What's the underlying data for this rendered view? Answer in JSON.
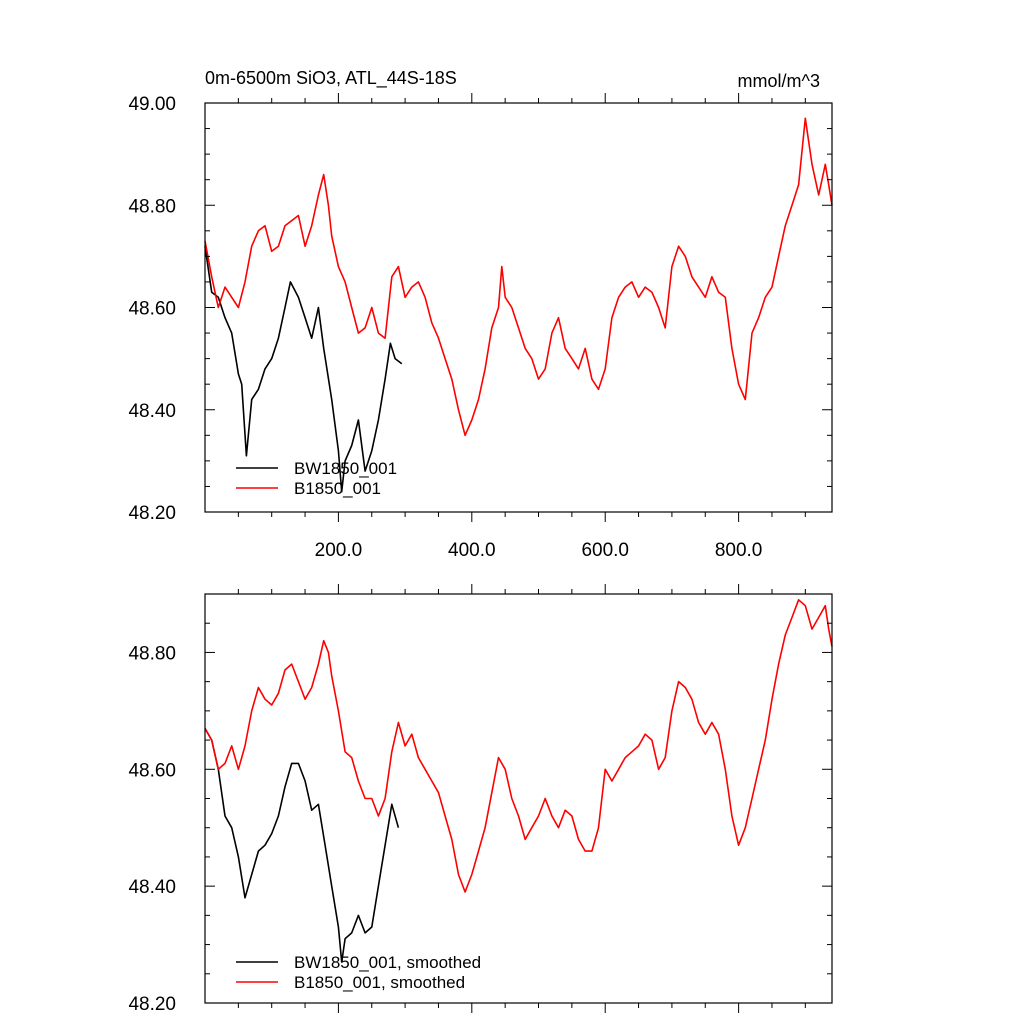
{
  "colors": {
    "series_a": "#000000",
    "series_b": "#ff0000",
    "axis": "#000000",
    "background": "#ffffff"
  },
  "chart_data": [
    {
      "type": "line",
      "title": "0m-6500m SiO3, ATL_44S-18S",
      "units": "mmol/m^3",
      "xlim": [
        0,
        940
      ],
      "ylim": [
        48.2,
        49.0
      ],
      "xticks": [
        200,
        400,
        600,
        800
      ],
      "xtick_labels": [
        "200.0",
        "400.0",
        "600.0",
        "800.0"
      ],
      "yticks": [
        48.2,
        48.4,
        48.6,
        48.8,
        49.0
      ],
      "ytick_labels": [
        "48.20",
        "48.40",
        "48.60",
        "48.80",
        "49.00"
      ],
      "legend_position": "bottom-left",
      "grid": false,
      "series": [
        {
          "name": "BW1850_001",
          "color": "#000000",
          "points": [
            [
              0,
              48.72
            ],
            [
              10,
              48.63
            ],
            [
              20,
              48.62
            ],
            [
              30,
              48.58
            ],
            [
              40,
              48.55
            ],
            [
              50,
              48.47
            ],
            [
              55,
              48.45
            ],
            [
              62,
              48.31
            ],
            [
              70,
              48.42
            ],
            [
              80,
              48.44
            ],
            [
              90,
              48.48
            ],
            [
              100,
              48.5
            ],
            [
              110,
              48.54
            ],
            [
              120,
              48.6
            ],
            [
              128,
              48.65
            ],
            [
              140,
              48.62
            ],
            [
              150,
              48.58
            ],
            [
              160,
              48.54
            ],
            [
              170,
              48.6
            ],
            [
              178,
              48.52
            ],
            [
              190,
              48.42
            ],
            [
              200,
              48.32
            ],
            [
              205,
              48.24
            ],
            [
              210,
              48.3
            ],
            [
              220,
              48.33
            ],
            [
              230,
              48.38
            ],
            [
              240,
              48.28
            ],
            [
              250,
              48.32
            ],
            [
              260,
              48.38
            ],
            [
              270,
              48.46
            ],
            [
              278,
              48.53
            ],
            [
              285,
              48.5
            ],
            [
              295,
              48.49
            ]
          ]
        },
        {
          "name": "B1850_001",
          "color": "#ff0000",
          "points": [
            [
              0,
              48.73
            ],
            [
              10,
              48.66
            ],
            [
              20,
              48.6
            ],
            [
              30,
              48.64
            ],
            [
              40,
              48.62
            ],
            [
              50,
              48.6
            ],
            [
              60,
              48.65
            ],
            [
              70,
              48.72
            ],
            [
              80,
              48.75
            ],
            [
              90,
              48.76
            ],
            [
              100,
              48.71
            ],
            [
              110,
              48.72
            ],
            [
              120,
              48.76
            ],
            [
              130,
              48.77
            ],
            [
              140,
              48.78
            ],
            [
              150,
              48.72
            ],
            [
              160,
              48.76
            ],
            [
              170,
              48.82
            ],
            [
              178,
              48.86
            ],
            [
              185,
              48.8
            ],
            [
              190,
              48.74
            ],
            [
              200,
              48.68
            ],
            [
              210,
              48.65
            ],
            [
              220,
              48.6
            ],
            [
              230,
              48.55
            ],
            [
              240,
              48.56
            ],
            [
              250,
              48.6
            ],
            [
              260,
              48.55
            ],
            [
              270,
              48.54
            ],
            [
              280,
              48.66
            ],
            [
              290,
              48.68
            ],
            [
              300,
              48.62
            ],
            [
              310,
              48.64
            ],
            [
              320,
              48.65
            ],
            [
              330,
              48.62
            ],
            [
              340,
              48.57
            ],
            [
              350,
              48.54
            ],
            [
              360,
              48.5
            ],
            [
              370,
              48.46
            ],
            [
              380,
              48.4
            ],
            [
              390,
              48.35
            ],
            [
              400,
              48.38
            ],
            [
              410,
              48.42
            ],
            [
              420,
              48.48
            ],
            [
              430,
              48.56
            ],
            [
              440,
              48.6
            ],
            [
              445,
              48.68
            ],
            [
              450,
              48.62
            ],
            [
              460,
              48.6
            ],
            [
              470,
              48.56
            ],
            [
              480,
              48.52
            ],
            [
              490,
              48.5
            ],
            [
              500,
              48.46
            ],
            [
              510,
              48.48
            ],
            [
              520,
              48.55
            ],
            [
              530,
              48.58
            ],
            [
              540,
              48.52
            ],
            [
              550,
              48.5
            ],
            [
              560,
              48.48
            ],
            [
              570,
              48.52
            ],
            [
              580,
              48.46
            ],
            [
              590,
              48.44
            ],
            [
              600,
              48.48
            ],
            [
              610,
              48.58
            ],
            [
              620,
              48.62
            ],
            [
              630,
              48.64
            ],
            [
              640,
              48.65
            ],
            [
              650,
              48.62
            ],
            [
              660,
              48.64
            ],
            [
              670,
              48.63
            ],
            [
              680,
              48.6
            ],
            [
              690,
              48.56
            ],
            [
              700,
              48.68
            ],
            [
              710,
              48.72
            ],
            [
              720,
              48.7
            ],
            [
              730,
              48.66
            ],
            [
              740,
              48.64
            ],
            [
              750,
              48.62
            ],
            [
              760,
              48.66
            ],
            [
              770,
              48.63
            ],
            [
              780,
              48.62
            ],
            [
              790,
              48.52
            ],
            [
              800,
              48.45
            ],
            [
              810,
              48.42
            ],
            [
              820,
              48.55
            ],
            [
              830,
              48.58
            ],
            [
              840,
              48.62
            ],
            [
              850,
              48.64
            ],
            [
              860,
              48.7
            ],
            [
              870,
              48.76
            ],
            [
              880,
              48.8
            ],
            [
              890,
              48.84
            ],
            [
              900,
              48.97
            ],
            [
              910,
              48.88
            ],
            [
              920,
              48.82
            ],
            [
              930,
              48.88
            ],
            [
              935,
              48.84
            ],
            [
              940,
              48.8
            ]
          ]
        }
      ]
    },
    {
      "type": "line",
      "title": "",
      "units": "",
      "xlim": [
        0,
        940
      ],
      "ylim": [
        48.2,
        48.9
      ],
      "xticks": [
        200,
        400,
        600,
        800
      ],
      "xtick_labels": [],
      "yticks": [
        48.2,
        48.4,
        48.6,
        48.8
      ],
      "ytick_labels": [
        "48.20",
        "48.40",
        "48.60",
        "48.80"
      ],
      "legend_position": "bottom-left",
      "grid": false,
      "series": [
        {
          "name": "BW1850_001, smoothed",
          "color": "#000000",
          "points": [
            [
              0,
              48.67
            ],
            [
              10,
              48.65
            ],
            [
              20,
              48.6
            ],
            [
              30,
              48.52
            ],
            [
              40,
              48.5
            ],
            [
              50,
              48.45
            ],
            [
              60,
              48.38
            ],
            [
              70,
              48.42
            ],
            [
              80,
              48.46
            ],
            [
              90,
              48.47
            ],
            [
              100,
              48.49
            ],
            [
              110,
              48.52
            ],
            [
              120,
              48.57
            ],
            [
              130,
              48.61
            ],
            [
              140,
              48.61
            ],
            [
              150,
              48.58
            ],
            [
              160,
              48.53
            ],
            [
              170,
              48.54
            ],
            [
              180,
              48.47
            ],
            [
              190,
              48.4
            ],
            [
              200,
              48.33
            ],
            [
              205,
              48.27
            ],
            [
              210,
              48.31
            ],
            [
              220,
              48.32
            ],
            [
              230,
              48.35
            ],
            [
              240,
              48.32
            ],
            [
              250,
              48.33
            ],
            [
              260,
              48.4
            ],
            [
              270,
              48.47
            ],
            [
              280,
              48.54
            ],
            [
              290,
              48.5
            ]
          ]
        },
        {
          "name": "B1850_001, smoothed",
          "color": "#ff0000",
          "points": [
            [
              0,
              48.67
            ],
            [
              10,
              48.65
            ],
            [
              20,
              48.6
            ],
            [
              30,
              48.61
            ],
            [
              40,
              48.64
            ],
            [
              50,
              48.6
            ],
            [
              60,
              48.64
            ],
            [
              70,
              48.7
            ],
            [
              80,
              48.74
            ],
            [
              90,
              48.72
            ],
            [
              100,
              48.71
            ],
            [
              110,
              48.73
            ],
            [
              120,
              48.77
            ],
            [
              130,
              48.78
            ],
            [
              140,
              48.75
            ],
            [
              150,
              48.72
            ],
            [
              160,
              48.74
            ],
            [
              170,
              48.78
            ],
            [
              178,
              48.82
            ],
            [
              185,
              48.8
            ],
            [
              190,
              48.76
            ],
            [
              200,
              48.7
            ],
            [
              210,
              48.63
            ],
            [
              220,
              48.62
            ],
            [
              230,
              48.58
            ],
            [
              240,
              48.55
            ],
            [
              250,
              48.55
            ],
            [
              260,
              48.52
            ],
            [
              270,
              48.55
            ],
            [
              280,
              48.63
            ],
            [
              290,
              48.68
            ],
            [
              300,
              48.64
            ],
            [
              310,
              48.66
            ],
            [
              320,
              48.62
            ],
            [
              330,
              48.6
            ],
            [
              340,
              48.58
            ],
            [
              350,
              48.56
            ],
            [
              360,
              48.52
            ],
            [
              370,
              48.48
            ],
            [
              380,
              48.42
            ],
            [
              390,
              48.39
            ],
            [
              400,
              48.42
            ],
            [
              410,
              48.46
            ],
            [
              420,
              48.5
            ],
            [
              430,
              48.56
            ],
            [
              440,
              48.62
            ],
            [
              450,
              48.6
            ],
            [
              460,
              48.55
            ],
            [
              470,
              48.52
            ],
            [
              480,
              48.48
            ],
            [
              490,
              48.5
            ],
            [
              500,
              48.52
            ],
            [
              510,
              48.55
            ],
            [
              520,
              48.52
            ],
            [
              530,
              48.5
            ],
            [
              540,
              48.53
            ],
            [
              550,
              48.52
            ],
            [
              560,
              48.48
            ],
            [
              570,
              48.46
            ],
            [
              580,
              48.46
            ],
            [
              590,
              48.5
            ],
            [
              600,
              48.6
            ],
            [
              610,
              48.58
            ],
            [
              620,
              48.6
            ],
            [
              630,
              48.62
            ],
            [
              640,
              48.63
            ],
            [
              650,
              48.64
            ],
            [
              660,
              48.66
            ],
            [
              670,
              48.65
            ],
            [
              680,
              48.6
            ],
            [
              690,
              48.62
            ],
            [
              700,
              48.7
            ],
            [
              710,
              48.75
            ],
            [
              720,
              48.74
            ],
            [
              730,
              48.72
            ],
            [
              740,
              48.68
            ],
            [
              750,
              48.66
            ],
            [
              760,
              48.68
            ],
            [
              770,
              48.66
            ],
            [
              780,
              48.6
            ],
            [
              790,
              48.52
            ],
            [
              800,
              48.47
            ],
            [
              810,
              48.5
            ],
            [
              820,
              48.55
            ],
            [
              830,
              48.6
            ],
            [
              840,
              48.65
            ],
            [
              850,
              48.72
            ],
            [
              860,
              48.78
            ],
            [
              870,
              48.83
            ],
            [
              880,
              48.86
            ],
            [
              890,
              48.89
            ],
            [
              900,
              48.88
            ],
            [
              910,
              48.84
            ],
            [
              920,
              48.86
            ],
            [
              930,
              48.88
            ],
            [
              935,
              48.84
            ],
            [
              940,
              48.81
            ]
          ]
        }
      ]
    }
  ]
}
